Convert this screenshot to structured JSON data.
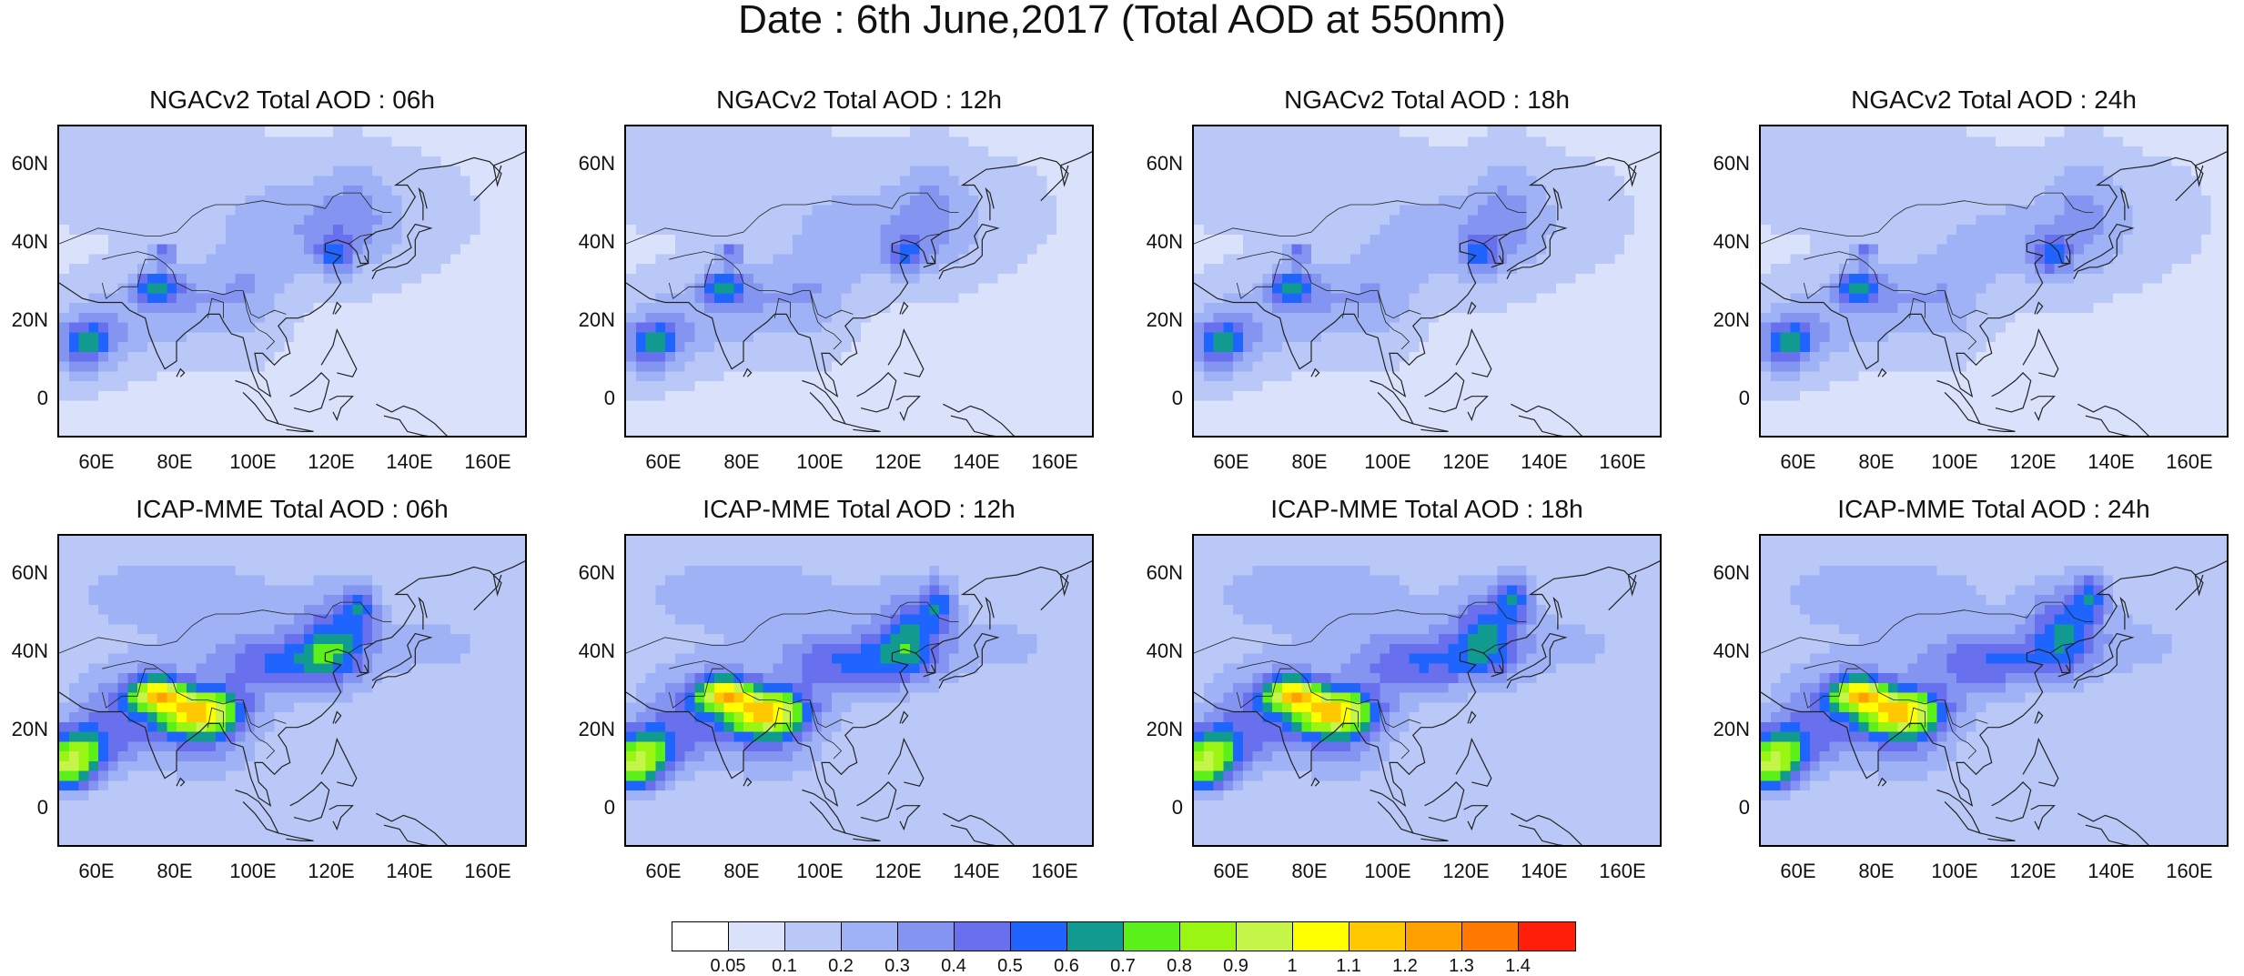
{
  "title": "Date : 6th June,2017 (Total AOD at 550nm)",
  "panels": [
    {
      "title": "NGACv2 Total AOD : 06h"
    },
    {
      "title": "NGACv2 Total AOD : 12h"
    },
    {
      "title": "NGACv2 Total AOD : 18h"
    },
    {
      "title": "NGACv2 Total AOD : 24h"
    },
    {
      "title": "ICAP-MME Total AOD : 06h"
    },
    {
      "title": "ICAP-MME Total AOD : 12h"
    },
    {
      "title": "ICAP-MME Total AOD : 18h"
    },
    {
      "title": "ICAP-MME Total AOD : 24h"
    }
  ],
  "axes": {
    "lat_labels": [
      "60N",
      "40N",
      "20N",
      "0"
    ],
    "lon_labels": [
      "60E",
      "80E",
      "100E",
      "120E",
      "140E",
      "160E"
    ]
  },
  "colorbar": {
    "labels": [
      "0.05",
      "0.1",
      "0.2",
      "0.3",
      "0.4",
      "0.5",
      "0.6",
      "0.7",
      "0.8",
      "0.9",
      "1",
      "1.1",
      "1.2",
      "1.3",
      "1.4"
    ],
    "colors": [
      "#ffffff",
      "#d9e1fb",
      "#bac8f7",
      "#9fb2f5",
      "#8395f0",
      "#6870ee",
      "#1f64ff",
      "#109a90",
      "#5cf01a",
      "#9bf512",
      "#c6f54a",
      "#ffff00",
      "#ffc800",
      "#ffa000",
      "#ff7800",
      "#ff1e0a"
    ]
  },
  "map_extent": {
    "lon": [
      50,
      170
    ],
    "lat": [
      -10,
      70
    ]
  }
}
